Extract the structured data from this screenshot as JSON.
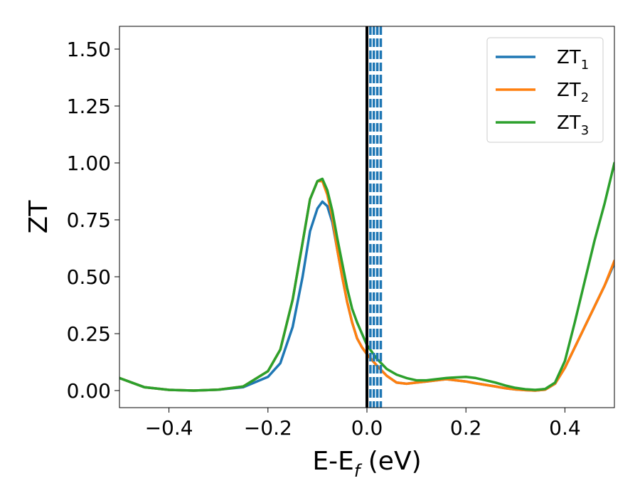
{
  "chart_data": {
    "type": "line",
    "xlabel": {
      "main": "E-E",
      "sub": "f",
      "unit": " (eV)"
    },
    "ylabel": "ZT",
    "xlim": [
      -0.5,
      0.5
    ],
    "ylim": [
      -0.075,
      1.6
    ],
    "xticks": [
      -0.4,
      -0.2,
      0.0,
      0.2,
      0.4
    ],
    "xtick_labels": [
      "−0.4",
      "−0.2",
      "0.0",
      "0.2",
      "0.4"
    ],
    "yticks": [
      0.0,
      0.25,
      0.5,
      0.75,
      1.0,
      1.25,
      1.5
    ],
    "ytick_labels": [
      "0.00",
      "0.25",
      "0.50",
      "0.75",
      "1.00",
      "1.25",
      "1.50"
    ],
    "grid": false,
    "legend_position": "top-right",
    "series": [
      {
        "name": "ZT",
        "name_sub": "1",
        "color": "#1f77b4",
        "x": [
          -0.5,
          -0.45,
          -0.4,
          -0.35,
          -0.3,
          -0.25,
          -0.2,
          -0.175,
          -0.15,
          -0.13,
          -0.115,
          -0.1,
          -0.09,
          -0.08,
          -0.07,
          -0.06,
          -0.05,
          -0.04,
          -0.03,
          -0.02,
          -0.01,
          0.0,
          0.02,
          0.04,
          0.06,
          0.08,
          0.1,
          0.12,
          0.14,
          0.16,
          0.18,
          0.2,
          0.22,
          0.24,
          0.26,
          0.28,
          0.3,
          0.32,
          0.34,
          0.36,
          0.38,
          0.4,
          0.42,
          0.44,
          0.46,
          0.48,
          0.5
        ],
        "y": [
          0.055,
          0.015,
          0.003,
          0.0,
          0.004,
          0.015,
          0.06,
          0.12,
          0.28,
          0.5,
          0.7,
          0.8,
          0.83,
          0.81,
          0.74,
          0.62,
          0.5,
          0.39,
          0.3,
          0.23,
          0.19,
          0.16,
          0.11,
          0.065,
          0.035,
          0.03,
          0.035,
          0.04,
          0.045,
          0.05,
          0.045,
          0.04,
          0.032,
          0.025,
          0.018,
          0.01,
          0.005,
          0.002,
          0.0,
          0.004,
          0.03,
          0.1,
          0.19,
          0.28,
          0.37,
          0.46,
          0.56
        ]
      },
      {
        "name": "ZT",
        "name_sub": "2",
        "color": "#ff7f0e",
        "x": [
          -0.5,
          -0.45,
          -0.4,
          -0.35,
          -0.3,
          -0.25,
          -0.2,
          -0.175,
          -0.15,
          -0.13,
          -0.115,
          -0.1,
          -0.09,
          -0.08,
          -0.07,
          -0.06,
          -0.05,
          -0.04,
          -0.03,
          -0.02,
          -0.01,
          0.0,
          0.02,
          0.04,
          0.06,
          0.08,
          0.1,
          0.12,
          0.14,
          0.16,
          0.18,
          0.2,
          0.22,
          0.24,
          0.26,
          0.28,
          0.3,
          0.32,
          0.34,
          0.36,
          0.38,
          0.4,
          0.42,
          0.44,
          0.46,
          0.48,
          0.5
        ],
        "y": [
          0.055,
          0.015,
          0.003,
          0.0,
          0.004,
          0.018,
          0.085,
          0.18,
          0.4,
          0.65,
          0.84,
          0.92,
          0.92,
          0.86,
          0.76,
          0.62,
          0.5,
          0.39,
          0.3,
          0.23,
          0.19,
          0.16,
          0.11,
          0.065,
          0.035,
          0.03,
          0.035,
          0.04,
          0.045,
          0.05,
          0.045,
          0.04,
          0.032,
          0.025,
          0.018,
          0.01,
          0.005,
          0.002,
          0.0,
          0.004,
          0.03,
          0.1,
          0.19,
          0.28,
          0.37,
          0.46,
          0.57
        ]
      },
      {
        "name": "ZT",
        "name_sub": "3",
        "color": "#2ca02c",
        "x": [
          -0.5,
          -0.45,
          -0.4,
          -0.35,
          -0.3,
          -0.25,
          -0.2,
          -0.175,
          -0.15,
          -0.13,
          -0.115,
          -0.1,
          -0.09,
          -0.08,
          -0.07,
          -0.06,
          -0.05,
          -0.04,
          -0.03,
          -0.02,
          -0.01,
          0.0,
          0.02,
          0.04,
          0.06,
          0.08,
          0.1,
          0.12,
          0.14,
          0.16,
          0.18,
          0.2,
          0.22,
          0.24,
          0.26,
          0.28,
          0.3,
          0.32,
          0.34,
          0.36,
          0.38,
          0.4,
          0.42,
          0.44,
          0.46,
          0.48,
          0.5
        ],
        "y": [
          0.055,
          0.015,
          0.003,
          0.0,
          0.004,
          0.018,
          0.085,
          0.18,
          0.4,
          0.65,
          0.84,
          0.92,
          0.93,
          0.88,
          0.79,
          0.67,
          0.56,
          0.45,
          0.36,
          0.3,
          0.25,
          0.2,
          0.14,
          0.095,
          0.07,
          0.055,
          0.045,
          0.045,
          0.05,
          0.055,
          0.058,
          0.06,
          0.055,
          0.045,
          0.035,
          0.022,
          0.012,
          0.006,
          0.003,
          0.007,
          0.035,
          0.13,
          0.3,
          0.48,
          0.66,
          0.82,
          1.0
        ]
      }
    ],
    "vertical_lines": [
      {
        "x": 0.0,
        "color": "#000000",
        "style": "solid"
      },
      {
        "x": 0.007,
        "color": "#1f77b4",
        "style": "dashed"
      },
      {
        "x": 0.014,
        "color": "#1f77b4",
        "style": "dashed"
      },
      {
        "x": 0.021,
        "color": "#1f77b4",
        "style": "dashed"
      },
      {
        "x": 0.028,
        "color": "#1f77b4",
        "style": "dashed"
      }
    ]
  }
}
